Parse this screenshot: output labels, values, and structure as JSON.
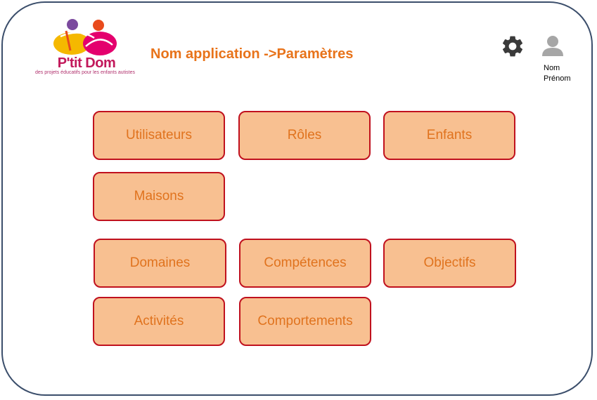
{
  "header": {
    "logo": {
      "name": "P'tit Dom",
      "tagline": "des projets éducatifs pour les enfants autistes"
    },
    "title": "Nom application ->Paramètres",
    "settings_icon": "gear-icon",
    "user_icon": "user-icon",
    "user_name_line1": "Nom",
    "user_name_line2": "Prénom"
  },
  "tiles": {
    "utilisateurs": "Utilisateurs",
    "roles": "Rôles",
    "enfants": "Enfants",
    "maisons": "Maisons",
    "domaines": "Domaines",
    "competences": "Compétences",
    "objectifs": "Objectifs",
    "activites": "Activités",
    "comportements": "Comportements"
  },
  "colors": {
    "title": "#e8731a",
    "tile_fill": "#f8c091",
    "tile_border": "#c0111e",
    "tile_text": "#e0731e",
    "frame_border": "#3b4e6b"
  }
}
